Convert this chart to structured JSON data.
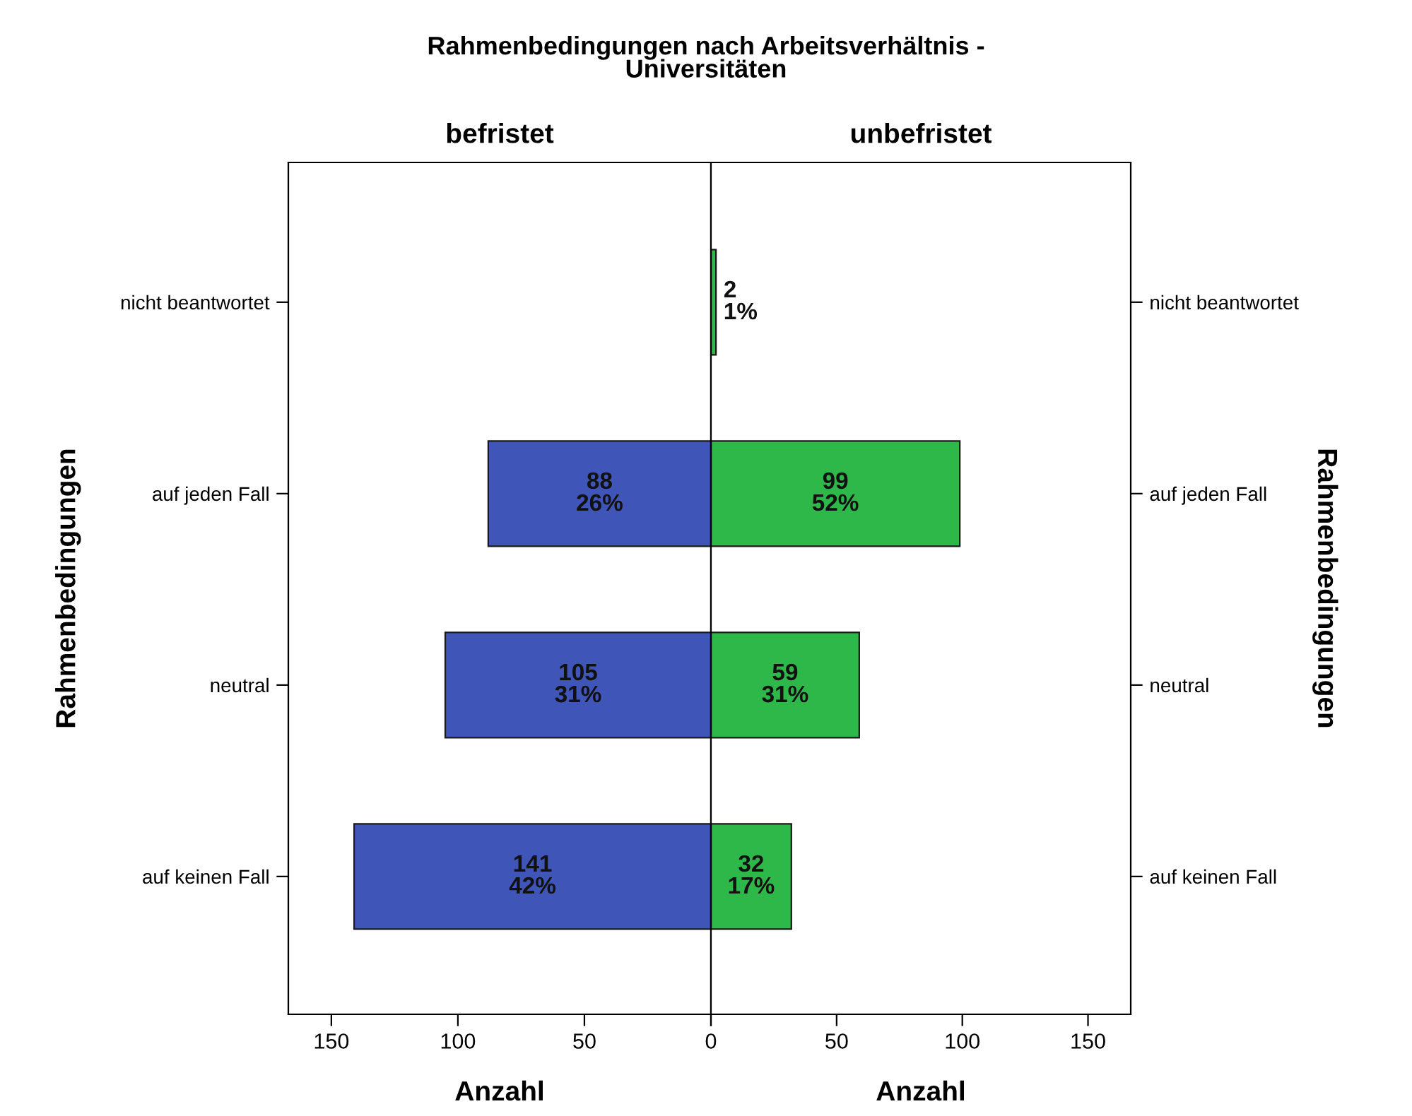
{
  "chart_data": [
    {
      "type": "bar",
      "orientation": "horizontal",
      "title": "Rahmenbedingungen nach Arbeitsverhältnis -\nUniversitäten",
      "subtitle": "befristet",
      "xlabel": "Anzahl",
      "ylabel": "Rahmenbedingungen",
      "categories": [
        "nicht beantwortet",
        "auf jeden Fall",
        "neutral",
        "auf keinen Fall"
      ],
      "values": [
        null,
        88,
        105,
        141
      ],
      "color": "#4055b8",
      "value_labels": [
        null,
        "88\n26%",
        "105\n31%",
        "141\n42%"
      ],
      "xlim": [
        167,
        0
      ],
      "xticks": [
        150,
        100,
        50,
        {
          "value": 0,
          "label": null
        }
      ],
      "grid": false,
      "legend": false
    },
    {
      "type": "bar",
      "orientation": "horizontal",
      "subtitle": "unbefristet",
      "xlabel": "Anzahl",
      "ylabel": "Rahmenbedingungen",
      "categories": [
        "nicht beantwortet",
        "auf jeden Fall",
        "neutral",
        "auf keinen Fall"
      ],
      "values": [
        2,
        99,
        59,
        32
      ],
      "color": "#2fb84a",
      "value_labels": [
        "2\n1%",
        "99\n52%",
        "59\n31%",
        "32\n17%"
      ],
      "xlim": [
        0,
        167
      ],
      "xticks": [
        0,
        50,
        100,
        150
      ],
      "grid": false,
      "legend": false
    }
  ]
}
